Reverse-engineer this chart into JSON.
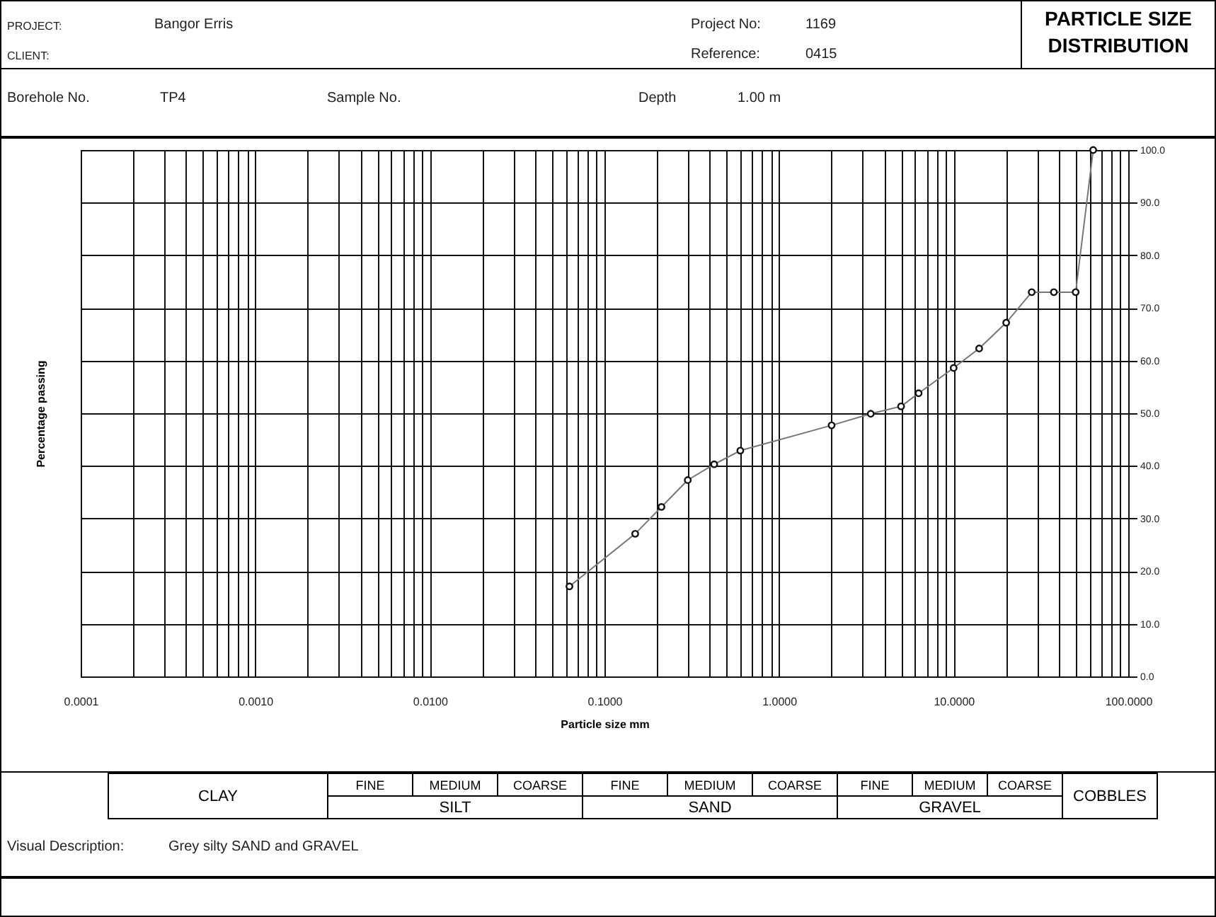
{
  "chart_data": {
    "type": "line",
    "title": "PARTICLE SIZE DISTRIBUTION",
    "xlabel": "Particle size mm",
    "ylabel": "Percentage passing",
    "log": "x",
    "grid": true,
    "marker": "circle",
    "line_style": "solid",
    "x": [
      0.063,
      0.15,
      0.212,
      0.3,
      0.425,
      0.6,
      2,
      3.35,
      5,
      6.3,
      10,
      14,
      20,
      28,
      37.5,
      50,
      63
    ],
    "series": [
      {
        "color": "#777777",
        "values": [
          17.1,
          27.1,
          32.2,
          37.3,
          40.3,
          42.9,
          47.7,
          49.9,
          51.3,
          53.8,
          58.6,
          62.3,
          67.2,
          73.0,
          73.0,
          73.0,
          100
        ]
      }
    ],
    "xlim": [
      0.0001,
      100
    ],
    "ylim": [
      0,
      100
    ],
    "xticks": [
      {
        "value": 0.0001,
        "label": "0.0001"
      },
      {
        "value": 0.0002,
        "label": null
      },
      {
        "value": 0.0003,
        "label": null
      },
      {
        "value": 0.0004,
        "label": null
      },
      {
        "value": 0.0005,
        "label": null
      },
      {
        "value": 0.0006,
        "label": null
      },
      {
        "value": 0.0007,
        "label": null
      },
      {
        "value": 0.0008,
        "label": null
      },
      {
        "value": 0.0009,
        "label": null
      },
      {
        "value": 0.001,
        "label": "0.0010"
      },
      {
        "value": 0.002,
        "label": null
      },
      {
        "value": 0.003,
        "label": null
      },
      {
        "value": 0.004,
        "label": null
      },
      {
        "value": 0.005,
        "label": null
      },
      {
        "value": 0.006,
        "label": null
      },
      {
        "value": 0.007,
        "label": null
      },
      {
        "value": 0.008,
        "label": null
      },
      {
        "value": 0.009,
        "label": null
      },
      {
        "value": 0.01,
        "label": "0.0100"
      },
      {
        "value": 0.02,
        "label": null
      },
      {
        "value": 0.03,
        "label": null
      },
      {
        "value": 0.04,
        "label": null
      },
      {
        "value": 0.05,
        "label": null
      },
      {
        "value": 0.06,
        "label": null
      },
      {
        "value": 0.07,
        "label": null
      },
      {
        "value": 0.08,
        "label": null
      },
      {
        "value": 0.09,
        "label": null
      },
      {
        "value": 0.1,
        "label": "0.1000"
      },
      {
        "value": 0.2,
        "label": null
      },
      {
        "value": 0.3,
        "label": null
      },
      {
        "value": 0.4,
        "label": null
      },
      {
        "value": 0.5,
        "label": null
      },
      {
        "value": 0.6,
        "label": null
      },
      {
        "value": 0.7,
        "label": null
      },
      {
        "value": 0.8,
        "label": null
      },
      {
        "value": 0.9,
        "label": null
      },
      {
        "value": 1,
        "label": "1.0000"
      },
      {
        "value": 2,
        "label": null
      },
      {
        "value": 3,
        "label": null
      },
      {
        "value": 4,
        "label": null
      },
      {
        "value": 5,
        "label": null
      },
      {
        "value": 6,
        "label": null
      },
      {
        "value": 7,
        "label": null
      },
      {
        "value": 8,
        "label": null
      },
      {
        "value": 9,
        "label": null
      },
      {
        "value": 10,
        "label": "10.0000"
      },
      {
        "value": 20,
        "label": null
      },
      {
        "value": 30,
        "label": null
      },
      {
        "value": 40,
        "label": null
      },
      {
        "value": 50,
        "label": null
      },
      {
        "value": 60,
        "label": null
      },
      {
        "value": 70,
        "label": null
      },
      {
        "value": 80,
        "label": null
      },
      {
        "value": 90,
        "label": null
      },
      {
        "value": 100,
        "label": "100.0000"
      }
    ],
    "yticks": [
      {
        "value": 0,
        "label": "0.0"
      },
      {
        "value": 10,
        "label": "10.0"
      },
      {
        "value": 20,
        "label": "20.0"
      },
      {
        "value": 30,
        "label": "30.0"
      },
      {
        "value": 40,
        "label": "40.0"
      },
      {
        "value": 50,
        "label": "50.0"
      },
      {
        "value": 60,
        "label": "60.0"
      },
      {
        "value": 70,
        "label": "70.0"
      },
      {
        "value": 80,
        "label": "80.0"
      },
      {
        "value": 90,
        "label": "90.0"
      },
      {
        "value": 100,
        "label": "100.0"
      }
    ],
    "annotations": [
      "PROJECT:",
      "Bangor Erris",
      "CLIENT:",
      "Project No:",
      "1169",
      "Reference:",
      "0415",
      "Borehole No.",
      "TP4",
      "Sample No.",
      "Depth",
      "1.00 m",
      "CLAY",
      "FINE",
      "MEDIUM",
      "COARSE",
      "SILT",
      "FINE",
      "MEDIUM",
      "COARSE",
      "SAND",
      "FINE",
      "MEDIUM",
      "COARSE",
      "GRAVEL",
      "COBBLES",
      "Visual Description:",
      "Grey silty SAND and GRAVEL"
    ]
  }
}
